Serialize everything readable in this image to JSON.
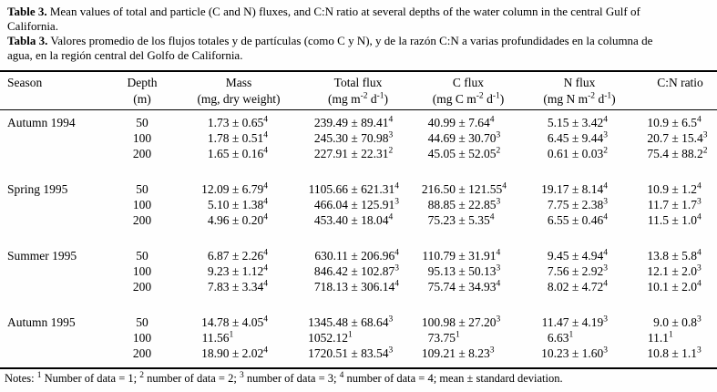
{
  "captions": {
    "english": {
      "label": "Table 3.",
      "lines": [
        "Mean values of total and particle (C and N) fluxes, and C:N ratio at several depths of the water column in the central Gulf of",
        "California."
      ]
    },
    "spanish": {
      "label": "Tabla 3.",
      "lines": [
        "Valores promedio de los flujos totales y de partículas (como C y N), y de la razón C:N a varias profundidades en la columna de",
        "agua, en la región central del Golfo de California."
      ]
    }
  },
  "table": {
    "columns": [
      {
        "title": "Season",
        "unit": ""
      },
      {
        "title": "Depth",
        "unit": "(m)"
      },
      {
        "title": "Mass",
        "unit": "(mg, dry weight)"
      },
      {
        "title": "Total flux",
        "unit": "(mg m^-2 d^-1)"
      },
      {
        "title": "C flux",
        "unit": "(mg C m^-2 d^-1)"
      },
      {
        "title": "N flux",
        "unit": "(mg N m^-2 d^-1)"
      },
      {
        "title": "C:N ratio",
        "unit": ""
      }
    ],
    "groups": [
      {
        "season": "Autumn 1994",
        "rows": [
          {
            "depth": "50",
            "mass": {
              "m": "1.73",
              "s": "0.65",
              "n": "4"
            },
            "total_flux": {
              "m": "239.49",
              "s": "89.41",
              "n": "4"
            },
            "c_flux": {
              "m": "40.99",
              "s": "7.64",
              "n": "4"
            },
            "n_flux": {
              "m": "5.15",
              "s": "3.42",
              "n": "4"
            },
            "cn_ratio": {
              "m": "10.9",
              "s": "6.5",
              "n": "4"
            }
          },
          {
            "depth": "100",
            "mass": {
              "m": "1.78",
              "s": "0.51",
              "n": "4"
            },
            "total_flux": {
              "m": "245.30",
              "s": "70.98",
              "n": "3"
            },
            "c_flux": {
              "m": "44.69",
              "s": "30.70",
              "n": "3"
            },
            "n_flux": {
              "m": "6.45",
              "s": "9.44",
              "n": "3"
            },
            "cn_ratio": {
              "m": "20.7",
              "s": "15.4",
              "n": "3"
            }
          },
          {
            "depth": "200",
            "mass": {
              "m": "1.65",
              "s": "0.16",
              "n": "4"
            },
            "total_flux": {
              "m": "227.91",
              "s": "22.31",
              "n": "2"
            },
            "c_flux": {
              "m": "45.05",
              "s": "52.05",
              "n": "2"
            },
            "n_flux": {
              "m": "0.61",
              "s": "0.03",
              "n": "2"
            },
            "cn_ratio": {
              "m": "75.4",
              "s": "88.2",
              "n": "2"
            }
          }
        ]
      },
      {
        "season": "Spring 1995",
        "rows": [
          {
            "depth": "50",
            "mass": {
              "m": "12.09",
              "s": "6.79",
              "n": "4"
            },
            "total_flux": {
              "m": "1105.66",
              "s": "621.31",
              "n": "4"
            },
            "c_flux": {
              "m": "216.50",
              "s": "121.55",
              "n": "4"
            },
            "n_flux": {
              "m": "19.17",
              "s": "8.14",
              "n": "4"
            },
            "cn_ratio": {
              "m": "10.9",
              "s": "1.2",
              "n": "4"
            }
          },
          {
            "depth": "100",
            "mass": {
              "m": "5.10",
              "s": "1.38",
              "n": "4"
            },
            "total_flux": {
              "m": "466.04",
              "s": "125.91",
              "n": "3"
            },
            "c_flux": {
              "m": "88.85",
              "s": "22.85",
              "n": "3"
            },
            "n_flux": {
              "m": "7.75",
              "s": "2.38",
              "n": "3"
            },
            "cn_ratio": {
              "m": "11.7",
              "s": "1.7",
              "n": "3"
            }
          },
          {
            "depth": "200",
            "mass": {
              "m": "4.96",
              "s": "0.20",
              "n": "4"
            },
            "total_flux": {
              "m": "453.40",
              "s": "18.04",
              "n": "4"
            },
            "c_flux": {
              "m": "75.23",
              "s": "5.35",
              "n": "4"
            },
            "n_flux": {
              "m": "6.55",
              "s": "0.46",
              "n": "4"
            },
            "cn_ratio": {
              "m": "11.5",
              "s": "1.0",
              "n": "4"
            }
          }
        ]
      },
      {
        "season": "Summer 1995",
        "rows": [
          {
            "depth": "50",
            "mass": {
              "m": "6.87",
              "s": "2.26",
              "n": "4"
            },
            "total_flux": {
              "m": "630.11",
              "s": "206.96",
              "n": "4"
            },
            "c_flux": {
              "m": "110.79",
              "s": "31.91",
              "n": "4"
            },
            "n_flux": {
              "m": "9.45",
              "s": "4.94",
              "n": "4"
            },
            "cn_ratio": {
              "m": "13.8",
              "s": "5.8",
              "n": "4"
            }
          },
          {
            "depth": "100",
            "mass": {
              "m": "9.23",
              "s": "1.12",
              "n": "4"
            },
            "total_flux": {
              "m": "846.42",
              "s": "102.87",
              "n": "3"
            },
            "c_flux": {
              "m": "95.13",
              "s": "50.13",
              "n": "3"
            },
            "n_flux": {
              "m": "7.56",
              "s": "2.92",
              "n": "3"
            },
            "cn_ratio": {
              "m": "12.1",
              "s": "2.0",
              "n": "3"
            }
          },
          {
            "depth": "200",
            "mass": {
              "m": "7.83",
              "s": "3.34",
              "n": "4"
            },
            "total_flux": {
              "m": "718.13",
              "s": "306.14",
              "n": "4"
            },
            "c_flux": {
              "m": "75.74",
              "s": "34.93",
              "n": "4"
            },
            "n_flux": {
              "m": "8.02",
              "s": "4.72",
              "n": "4"
            },
            "cn_ratio": {
              "m": "10.1",
              "s": "2.0",
              "n": "4"
            }
          }
        ]
      },
      {
        "season": "Autumn 1995",
        "rows": [
          {
            "depth": "50",
            "mass": {
              "m": "14.78",
              "s": "4.05",
              "n": "4"
            },
            "total_flux": {
              "m": "1345.48",
              "s": "68.64",
              "n": "3"
            },
            "c_flux": {
              "m": "100.98",
              "s": "27.20",
              "n": "3"
            },
            "n_flux": {
              "m": "11.47",
              "s": "4.19",
              "n": "3"
            },
            "cn_ratio": {
              "m": "9.0",
              "s": "0.8",
              "n": "3"
            }
          },
          {
            "depth": "100",
            "mass": {
              "m": "11.56",
              "s": "",
              "n": "1"
            },
            "total_flux": {
              "m": "1052.12",
              "s": "",
              "n": "1"
            },
            "c_flux": {
              "m": "73.75",
              "s": "",
              "n": "1"
            },
            "n_flux": {
              "m": "6.63",
              "s": "",
              "n": "1"
            },
            "cn_ratio": {
              "m": "11.1",
              "s": "",
              "n": "1"
            }
          },
          {
            "depth": "200",
            "mass": {
              "m": "18.90",
              "s": "2.02",
              "n": "4"
            },
            "total_flux": {
              "m": "1720.51",
              "s": "83.54",
              "n": "3"
            },
            "c_flux": {
              "m": "109.21",
              "s": "8.23",
              "n": "3"
            },
            "n_flux": {
              "m": "10.23",
              "s": "1.60",
              "n": "3"
            },
            "cn_ratio": {
              "m": "10.8",
              "s": "1.1",
              "n": "3"
            }
          }
        ]
      }
    ]
  },
  "notes": "Notes: ^1 Number of data = 1; ^2 number of data = 2; ^3 number of data = 3; ^4 number of data = 4;  mean ± standard deviation."
}
